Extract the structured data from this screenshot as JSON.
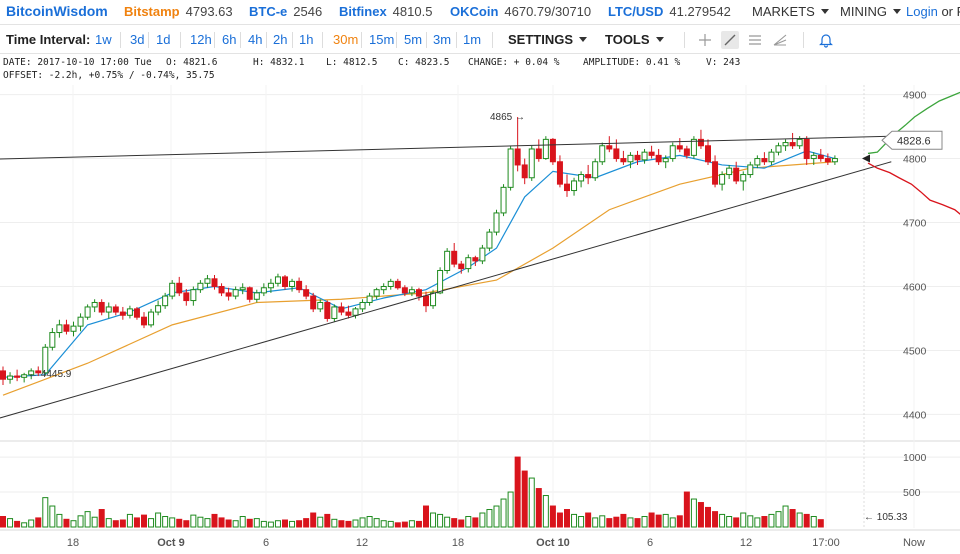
{
  "brand": "BitcoinWisdom",
  "tickers": [
    {
      "name": "Bitstamp",
      "value": "4793.63",
      "color": "#f0820f"
    },
    {
      "name": "BTC-e",
      "value": "2546",
      "color": "#1a6fd8"
    },
    {
      "name": "Bitfinex",
      "value": "4810.5",
      "color": "#1a6fd8"
    },
    {
      "name": "OKCoin",
      "value": "4670.79/30710",
      "color": "#1a6fd8"
    },
    {
      "name": "LTC/USD",
      "value": "41.279542",
      "color": "#1a6fd8"
    }
  ],
  "menus": {
    "markets": "MARKETS",
    "mining": "MINING",
    "login": "Login",
    "or": "or R"
  },
  "toolbar": {
    "label": "Time Interval:",
    "intervals": [
      "1w",
      "3d",
      "1d",
      "12h",
      "6h",
      "4h",
      "2h",
      "1h",
      "30m",
      "15m",
      "5m",
      "3m",
      "1m"
    ],
    "active_interval": "30m",
    "settings": "SETTINGS",
    "tools": "TOOLS",
    "icons": [
      "plus-icon",
      "line-tool-icon",
      "horizontal-lines-icon",
      "fan-tool-icon",
      "bell-icon"
    ]
  },
  "info": {
    "date": "DATE: 2017-10-10 17:00 Tue",
    "open": "O: 4821.6",
    "high": "H: 4832.1",
    "low": "L: 4812.5",
    "close": "C: 4823.5",
    "change": "CHANGE: + 0.04 %",
    "amplitude": "AMPLITUDE: 0.41 %",
    "volume": "V: 243",
    "offset": "OFFSET: -2.2h, +0.75% / -0.74%, 35.75"
  },
  "chart_data": {
    "type": "candlestick",
    "price_axis": {
      "ticks": [
        4400,
        4500,
        4600,
        4700,
        4800,
        4900
      ],
      "range": [
        4360,
        4915
      ]
    },
    "volume_axis": {
      "ticks": [
        500,
        1000
      ],
      "range": [
        0,
        1130
      ]
    },
    "x_ticks": [
      "18",
      "Oct 9",
      "6",
      "12",
      "18",
      "Oct 10",
      "6",
      "12",
      "17:00",
      "Now"
    ],
    "current_price_label": "4828.6",
    "annotations": {
      "high_label": "4865 →",
      "low_label": "← 4445.9",
      "volume_label": "← 105.33"
    },
    "ohlc": [
      [
        4468,
        4475,
        4445.9,
        4455
      ],
      [
        4455,
        4466,
        4448,
        4460
      ],
      [
        4460,
        4470,
        4452,
        4458
      ],
      [
        4458,
        4465,
        4450,
        4462
      ],
      [
        4462,
        4472,
        4455,
        4468
      ],
      [
        4468,
        4475,
        4460,
        4465
      ],
      [
        4465,
        4510,
        4462,
        4505
      ],
      [
        4505,
        4535,
        4500,
        4528
      ],
      [
        4528,
        4548,
        4520,
        4540
      ],
      [
        4540,
        4548,
        4525,
        4530
      ],
      [
        4530,
        4545,
        4522,
        4538
      ],
      [
        4538,
        4558,
        4530,
        4552
      ],
      [
        4552,
        4572,
        4548,
        4568
      ],
      [
        4568,
        4580,
        4560,
        4575
      ],
      [
        4575,
        4580,
        4555,
        4560
      ],
      [
        4560,
        4575,
        4550,
        4568
      ],
      [
        4568,
        4572,
        4555,
        4560
      ],
      [
        4560,
        4568,
        4548,
        4555
      ],
      [
        4555,
        4570,
        4550,
        4565
      ],
      [
        4565,
        4568,
        4548,
        4552
      ],
      [
        4552,
        4560,
        4535,
        4540
      ],
      [
        4540,
        4565,
        4536,
        4560
      ],
      [
        4560,
        4578,
        4555,
        4570
      ],
      [
        4570,
        4590,
        4565,
        4585
      ],
      [
        4585,
        4610,
        4580,
        4605
      ],
      [
        4605,
        4615,
        4585,
        4590
      ],
      [
        4590,
        4596,
        4570,
        4578
      ],
      [
        4578,
        4600,
        4570,
        4595
      ],
      [
        4595,
        4610,
        4590,
        4605
      ],
      [
        4605,
        4618,
        4598,
        4612
      ],
      [
        4612,
        4618,
        4595,
        4600
      ],
      [
        4600,
        4605,
        4585,
        4590
      ],
      [
        4590,
        4598,
        4578,
        4585
      ],
      [
        4585,
        4600,
        4580,
        4595
      ],
      [
        4595,
        4605,
        4588,
        4598
      ],
      [
        4598,
        4600,
        4575,
        4580
      ],
      [
        4580,
        4595,
        4575,
        4590
      ],
      [
        4590,
        4605,
        4585,
        4598
      ],
      [
        4598,
        4612,
        4590,
        4605
      ],
      [
        4605,
        4620,
        4600,
        4615
      ],
      [
        4615,
        4618,
        4595,
        4600
      ],
      [
        4600,
        4612,
        4592,
        4608
      ],
      [
        4608,
        4614,
        4590,
        4595
      ],
      [
        4595,
        4602,
        4580,
        4585
      ],
      [
        4585,
        4590,
        4560,
        4565
      ],
      [
        4565,
        4580,
        4560,
        4575
      ],
      [
        4575,
        4578,
        4545,
        4550
      ],
      [
        4550,
        4572,
        4545,
        4568
      ],
      [
        4568,
        4575,
        4555,
        4560
      ],
      [
        4560,
        4570,
        4550,
        4555
      ],
      [
        4555,
        4568,
        4550,
        4565
      ],
      [
        4565,
        4580,
        4560,
        4575
      ],
      [
        4575,
        4590,
        4570,
        4585
      ],
      [
        4585,
        4598,
        4580,
        4595
      ],
      [
        4595,
        4605,
        4588,
        4600
      ],
      [
        4600,
        4612,
        4595,
        4608
      ],
      [
        4608,
        4612,
        4595,
        4598
      ],
      [
        4598,
        4602,
        4585,
        4590
      ],
      [
        4590,
        4600,
        4585,
        4595
      ],
      [
        4595,
        4598,
        4578,
        4585
      ],
      [
        4585,
        4592,
        4560,
        4570
      ],
      [
        4570,
        4595,
        4565,
        4590
      ],
      [
        4590,
        4630,
        4588,
        4625
      ],
      [
        4625,
        4660,
        4620,
        4655
      ],
      [
        4655,
        4668,
        4630,
        4635
      ],
      [
        4635,
        4640,
        4620,
        4628
      ],
      [
        4628,
        4650,
        4622,
        4645
      ],
      [
        4645,
        4648,
        4632,
        4640
      ],
      [
        4640,
        4665,
        4635,
        4660
      ],
      [
        4660,
        4690,
        4655,
        4685
      ],
      [
        4685,
        4720,
        4680,
        4715
      ],
      [
        4715,
        4760,
        4710,
        4755
      ],
      [
        4755,
        4820,
        4750,
        4815
      ],
      [
        4815,
        4865,
        4780,
        4790
      ],
      [
        4790,
        4800,
        4760,
        4770
      ],
      [
        4770,
        4820,
        4765,
        4815
      ],
      [
        4815,
        4830,
        4795,
        4800
      ],
      [
        4800,
        4835,
        4798,
        4830
      ],
      [
        4830,
        4832,
        4790,
        4795
      ],
      [
        4795,
        4805,
        4755,
        4760
      ],
      [
        4760,
        4775,
        4740,
        4750
      ],
      [
        4750,
        4770,
        4742,
        4765
      ],
      [
        4765,
        4780,
        4755,
        4775
      ],
      [
        4775,
        4790,
        4760,
        4770
      ],
      [
        4770,
        4800,
        4765,
        4795
      ],
      [
        4795,
        4825,
        4790,
        4820
      ],
      [
        4820,
        4835,
        4810,
        4815
      ],
      [
        4815,
        4830,
        4795,
        4800
      ],
      [
        4800,
        4812,
        4790,
        4795
      ],
      [
        4795,
        4810,
        4785,
        4805
      ],
      [
        4805,
        4812,
        4790,
        4798
      ],
      [
        4798,
        4815,
        4792,
        4810
      ],
      [
        4810,
        4820,
        4800,
        4805
      ],
      [
        4805,
        4815,
        4790,
        4795
      ],
      [
        4795,
        4805,
        4785,
        4800
      ],
      [
        4800,
        4825,
        4795,
        4820
      ],
      [
        4820,
        4832,
        4810,
        4815
      ],
      [
        4815,
        4820,
        4800,
        4805
      ],
      [
        4805,
        4835,
        4800,
        4830
      ],
      [
        4830,
        4845,
        4815,
        4820
      ],
      [
        4820,
        4830,
        4790,
        4795
      ],
      [
        4795,
        4805,
        4755,
        4760
      ],
      [
        4760,
        4780,
        4750,
        4775
      ],
      [
        4775,
        4790,
        4768,
        4785
      ],
      [
        4785,
        4795,
        4760,
        4765
      ],
      [
        4765,
        4780,
        4750,
        4775
      ],
      [
        4775,
        4795,
        4770,
        4790
      ],
      [
        4790,
        4805,
        4785,
        4800
      ],
      [
        4800,
        4810,
        4790,
        4795
      ],
      [
        4795,
        4815,
        4790,
        4810
      ],
      [
        4810,
        4825,
        4805,
        4820
      ],
      [
        4820,
        4830,
        4812,
        4825
      ],
      [
        4825,
        4840,
        4815,
        4820
      ],
      [
        4820,
        4835,
        4815,
        4830
      ],
      [
        4830,
        4835,
        4790,
        4800
      ],
      [
        4800,
        4810,
        4790,
        4805
      ],
      [
        4805,
        4815,
        4795,
        4800
      ],
      [
        4800,
        4808,
        4790,
        4795
      ],
      [
        4795,
        4805,
        4790,
        4800
      ]
    ],
    "volume": [
      150,
      120,
      80,
      60,
      100,
      130,
      420,
      300,
      180,
      110,
      90,
      160,
      220,
      140,
      250,
      120,
      90,
      100,
      180,
      130,
      170,
      120,
      200,
      150,
      130,
      110,
      90,
      170,
      140,
      120,
      180,
      130,
      100,
      90,
      150,
      110,
      120,
      80,
      70,
      90,
      100,
      80,
      90,
      120,
      200,
      140,
      180,
      110,
      90,
      80,
      100,
      130,
      150,
      120,
      90,
      80,
      60,
      70,
      90,
      80,
      300,
      200,
      180,
      140,
      120,
      100,
      150,
      130,
      200,
      250,
      300,
      400,
      500,
      1000,
      800,
      700,
      550,
      450,
      300,
      200,
      250,
      180,
      150,
      200,
      130,
      160,
      120,
      140,
      180,
      130,
      120,
      150,
      200,
      170,
      180,
      130,
      160,
      500,
      400,
      350,
      280,
      220,
      180,
      150,
      130,
      200,
      160,
      130,
      150,
      180,
      220,
      300,
      250,
      200,
      180,
      150,
      105
    ],
    "ma_fast": [
      [
        0,
        4458
      ],
      [
        6,
        4462
      ],
      [
        12,
        4540
      ],
      [
        18,
        4560
      ],
      [
        24,
        4590
      ],
      [
        30,
        4600
      ],
      [
        36,
        4590
      ],
      [
        42,
        4598
      ],
      [
        48,
        4565
      ],
      [
        54,
        4582
      ],
      [
        60,
        4595
      ],
      [
        66,
        4630
      ],
      [
        70,
        4660
      ],
      [
        74,
        4740
      ],
      [
        78,
        4780
      ],
      [
        84,
        4770
      ],
      [
        90,
        4795
      ],
      [
        96,
        4805
      ],
      [
        102,
        4790
      ],
      [
        108,
        4785
      ],
      [
        114,
        4812
      ],
      [
        118,
        4800
      ]
    ],
    "ma_slow": [
      [
        0,
        4430
      ],
      [
        12,
        4480
      ],
      [
        24,
        4540
      ],
      [
        36,
        4575
      ],
      [
        48,
        4580
      ],
      [
        60,
        4590
      ],
      [
        70,
        4610
      ],
      [
        78,
        4660
      ],
      [
        86,
        4720
      ],
      [
        96,
        4760
      ],
      [
        106,
        4785
      ],
      [
        118,
        4795
      ]
    ],
    "trendlines": [
      {
        "from": [
          -5,
          4798
        ],
        "to": [
          126,
          4835
        ]
      },
      {
        "from": [
          -5,
          4380
        ],
        "to": [
          126,
          4795
        ]
      }
    ],
    "depth_bids": [
      [
        0,
        4808
      ],
      [
        6,
        4810
      ],
      [
        12,
        4825
      ],
      [
        18,
        4840
      ],
      [
        24,
        4852
      ],
      [
        30,
        4865
      ],
      [
        38,
        4878
      ],
      [
        46,
        4890
      ],
      [
        54,
        4898
      ],
      [
        60,
        4904
      ]
    ],
    "depth_asks": [
      [
        0,
        4793
      ],
      [
        6,
        4785
      ],
      [
        14,
        4778
      ],
      [
        20,
        4770
      ],
      [
        28,
        4760
      ],
      [
        34,
        4748
      ],
      [
        40,
        4735
      ],
      [
        48,
        4728
      ],
      [
        56,
        4720
      ],
      [
        60,
        4712
      ]
    ]
  },
  "colors": {
    "up": "#1e8a1e",
    "down": "#d9141c",
    "ma_fast": "#1b8fd6",
    "ma_slow": "#e8a030",
    "grid": "#eeeeee",
    "depth_bid": "#3ca53c",
    "depth_ask": "#d9141c"
  }
}
